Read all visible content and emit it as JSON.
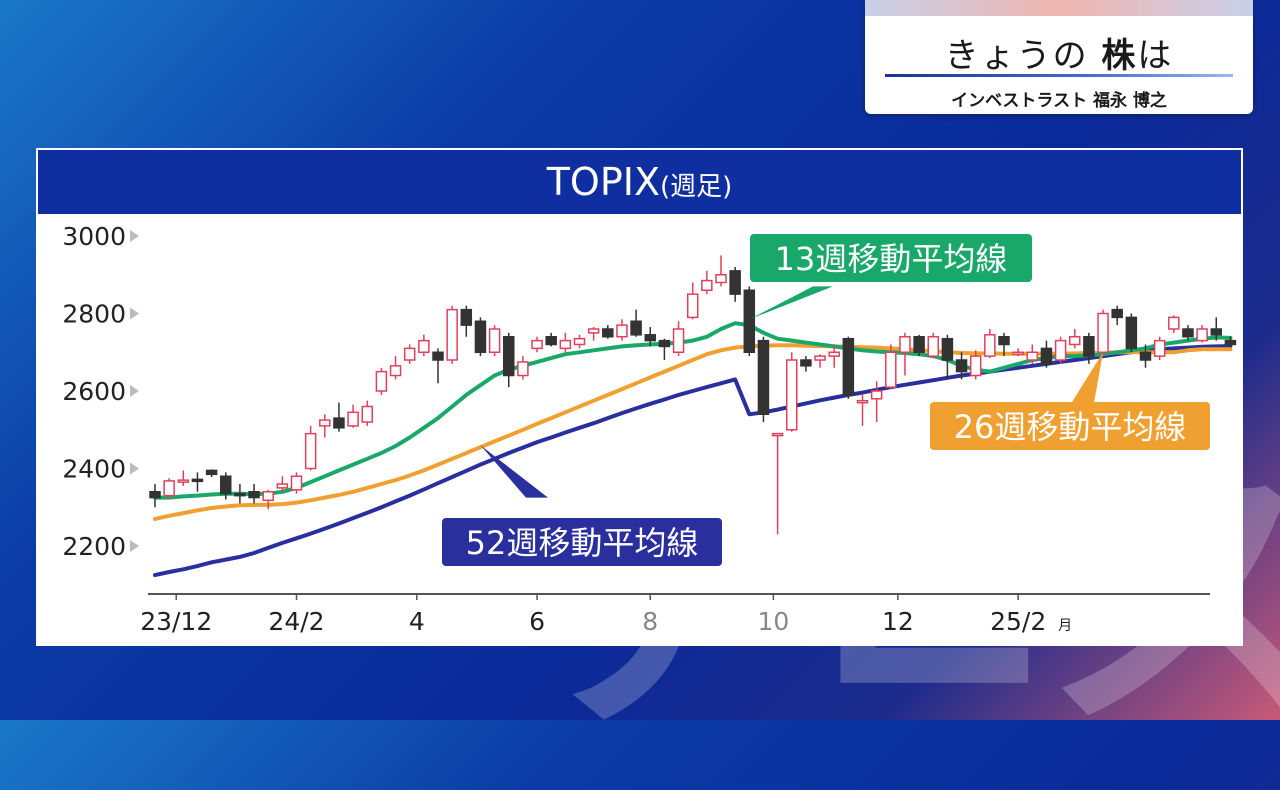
{
  "title_card": {
    "title_prefix": "きょうの ",
    "title_bold": "株",
    "title_suffix": "は",
    "subtitle": "インベストラスト 福永 博之"
  },
  "chart_header": {
    "title": "TOPIX",
    "suffix": "(週足)"
  },
  "colors": {
    "up": "#e0405a",
    "down": "#333333",
    "ma13": "#1aa86a",
    "ma26": "#f0a030",
    "ma52": "#2a2f9e",
    "header_bg": "#0f2fa0"
  },
  "chart_data": {
    "type": "candlestick",
    "title": "TOPIX(週足)",
    "ylim": [
      2100,
      3000
    ],
    "yticks": [
      3000,
      2800,
      2600,
      2400,
      2200
    ],
    "ytick_labels": [
      "3000",
      "2800",
      "2600",
      "2400",
      "2200"
    ],
    "xticks": [
      {
        "label": "23/12",
        "week": 1.5
      },
      {
        "label": "24/2",
        "week": 10
      },
      {
        "label": "4",
        "week": 18.5
      },
      {
        "label": "6",
        "week": 27
      },
      {
        "label": "8",
        "week": 35
      },
      {
        "label": "10",
        "week": 43.7
      },
      {
        "label": "12",
        "week": 52.5
      },
      {
        "label": "25/2",
        "week": 61
      }
    ],
    "x_unit": "月",
    "candles": [
      [
        2340,
        2325,
        2360,
        2300
      ],
      [
        2330,
        2368,
        2375,
        2320
      ],
      [
        2368,
        2370,
        2395,
        2355
      ],
      [
        2372,
        2370,
        2390,
        2340
      ],
      [
        2395,
        2385,
        2398,
        2378
      ],
      [
        2380,
        2335,
        2390,
        2320
      ],
      [
        2335,
        2330,
        2360,
        2310
      ],
      [
        2340,
        2325,
        2360,
        2310
      ],
      [
        2318,
        2340,
        2345,
        2295
      ],
      [
        2350,
        2360,
        2380,
        2340
      ],
      [
        2345,
        2380,
        2390,
        2335
      ],
      [
        2400,
        2490,
        2510,
        2395
      ],
      [
        2510,
        2525,
        2540,
        2480
      ],
      [
        2530,
        2505,
        2570,
        2495
      ],
      [
        2510,
        2545,
        2565,
        2505
      ],
      [
        2520,
        2560,
        2575,
        2510
      ],
      [
        2600,
        2650,
        2660,
        2590
      ],
      [
        2640,
        2665,
        2690,
        2630
      ],
      [
        2680,
        2710,
        2720,
        2670
      ],
      [
        2700,
        2730,
        2745,
        2690
      ],
      [
        2700,
        2680,
        2710,
        2620
      ],
      [
        2680,
        2810,
        2820,
        2670
      ],
      [
        2810,
        2770,
        2820,
        2740
      ],
      [
        2780,
        2700,
        2790,
        2690
      ],
      [
        2700,
        2760,
        2770,
        2690
      ],
      [
        2740,
        2640,
        2750,
        2610
      ],
      [
        2640,
        2675,
        2690,
        2630
      ],
      [
        2710,
        2730,
        2740,
        2700
      ],
      [
        2740,
        2720,
        2750,
        2715
      ],
      [
        2710,
        2730,
        2750,
        2700
      ],
      [
        2720,
        2735,
        2745,
        2710
      ],
      [
        2750,
        2760,
        2765,
        2730
      ],
      [
        2760,
        2740,
        2770,
        2735
      ],
      [
        2740,
        2770,
        2785,
        2730
      ],
      [
        2780,
        2745,
        2810,
        2740
      ],
      [
        2745,
        2730,
        2765,
        2715
      ],
      [
        2730,
        2715,
        2735,
        2680
      ],
      [
        2700,
        2760,
        2780,
        2690
      ],
      [
        2790,
        2850,
        2880,
        2785
      ],
      [
        2860,
        2885,
        2910,
        2850
      ],
      [
        2880,
        2900,
        2950,
        2870
      ],
      [
        2910,
        2850,
        2920,
        2830
      ],
      [
        2860,
        2700,
        2870,
        2690
      ],
      [
        2730,
        2540,
        2740,
        2520
      ],
      [
        2490,
        2490,
        2490,
        2230
      ],
      [
        2500,
        2680,
        2700,
        2495
      ],
      [
        2680,
        2665,
        2690,
        2650
      ],
      [
        2680,
        2690,
        2695,
        2660
      ],
      [
        2690,
        2700,
        2720,
        2660
      ],
      [
        2735,
        2590,
        2740,
        2580
      ],
      [
        2570,
        2575,
        2590,
        2510
      ],
      [
        2580,
        2600,
        2625,
        2520
      ],
      [
        2610,
        2700,
        2720,
        2605
      ],
      [
        2700,
        2740,
        2750,
        2640
      ],
      [
        2740,
        2700,
        2745,
        2690
      ],
      [
        2690,
        2740,
        2750,
        2685
      ],
      [
        2735,
        2680,
        2745,
        2630
      ],
      [
        2680,
        2650,
        2700,
        2630
      ],
      [
        2640,
        2690,
        2705,
        2630
      ],
      [
        2690,
        2745,
        2760,
        2685
      ],
      [
        2740,
        2720,
        2750,
        2690
      ],
      [
        2700,
        2700,
        2710,
        2690
      ],
      [
        2680,
        2700,
        2720,
        2670
      ],
      [
        2710,
        2670,
        2730,
        2660
      ],
      [
        2680,
        2730,
        2740,
        2670
      ],
      [
        2720,
        2740,
        2760,
        2710
      ],
      [
        2740,
        2690,
        2750,
        2670
      ],
      [
        2700,
        2800,
        2810,
        2690
      ],
      [
        2810,
        2790,
        2820,
        2770
      ],
      [
        2790,
        2710,
        2800,
        2700
      ],
      [
        2700,
        2680,
        2720,
        2660
      ],
      [
        2690,
        2730,
        2740,
        2680
      ],
      [
        2760,
        2790,
        2795,
        2750
      ],
      [
        2760,
        2740,
        2770,
        2730
      ],
      [
        2730,
        2760,
        2770,
        2725
      ],
      [
        2760,
        2745,
        2790,
        2730
      ],
      [
        2730,
        2720,
        2740,
        2715
      ]
    ],
    "series": [
      {
        "name": "13週移動平均線",
        "values": [
          2325,
          2325,
          2328,
          2330,
          2333,
          2335,
          2335,
          2334,
          2335,
          2340,
          2350,
          2365,
          2380,
          2395,
          2410,
          2425,
          2440,
          2458,
          2480,
          2505,
          2530,
          2560,
          2590,
          2615,
          2640,
          2655,
          2665,
          2675,
          2685,
          2695,
          2700,
          2705,
          2710,
          2715,
          2718,
          2720,
          2722,
          2725,
          2730,
          2740,
          2760,
          2775,
          2770,
          2750,
          2735,
          2730,
          2725,
          2720,
          2715,
          2710,
          2705,
          2702,
          2700,
          2698,
          2695,
          2690,
          2680,
          2665,
          2655,
          2650,
          2660,
          2670,
          2680,
          2685,
          2690,
          2690,
          2692,
          2695,
          2700,
          2705,
          2710,
          2720,
          2725,
          2730,
          2735,
          2738,
          2737
        ]
      },
      {
        "name": "26週移動平均線",
        "values": [
          2270,
          2278,
          2285,
          2292,
          2298,
          2302,
          2305,
          2306,
          2306,
          2308,
          2312,
          2318,
          2325,
          2332,
          2340,
          2350,
          2360,
          2370,
          2382,
          2395,
          2410,
          2425,
          2440,
          2455,
          2470,
          2485,
          2500,
          2515,
          2530,
          2545,
          2560,
          2575,
          2590,
          2605,
          2620,
          2635,
          2650,
          2665,
          2680,
          2695,
          2705,
          2712,
          2715,
          2717,
          2718,
          2718,
          2717,
          2716,
          2715,
          2714,
          2713,
          2712,
          2710,
          2708,
          2705,
          2703,
          2700,
          2698,
          2697,
          2697,
          2696,
          2696,
          2696,
          2696,
          2696,
          2697,
          2698,
          2699,
          2700,
          2700,
          2700,
          2700,
          2700,
          2705,
          2708,
          2708,
          2708
        ]
      },
      {
        "name": "52週移動平均線",
        "values": [
          2125,
          2133,
          2140,
          2148,
          2158,
          2165,
          2172,
          2182,
          2195,
          2208,
          2220,
          2232,
          2245,
          2258,
          2272,
          2286,
          2300,
          2315,
          2330,
          2346,
          2362,
          2378,
          2394,
          2410,
          2425,
          2440,
          2454,
          2468,
          2480,
          2493,
          2505,
          2517,
          2530,
          2543,
          2555,
          2567,
          2578,
          2590,
          2600,
          2610,
          2620,
          2630,
          2540,
          2545,
          2552,
          2560,
          2568,
          2576,
          2583,
          2590,
          2596,
          2603,
          2610,
          2616,
          2622,
          2628,
          2634,
          2640,
          2645,
          2650,
          2655,
          2660,
          2665,
          2670,
          2675,
          2680,
          2685,
          2690,
          2695,
          2700,
          2705,
          2708,
          2710,
          2712,
          2714,
          2715,
          2716
        ]
      }
    ]
  },
  "annotations": {
    "ma13": "13週移動平均線",
    "ma26": "26週移動平均線",
    "ma52": "52週移動平均線"
  }
}
